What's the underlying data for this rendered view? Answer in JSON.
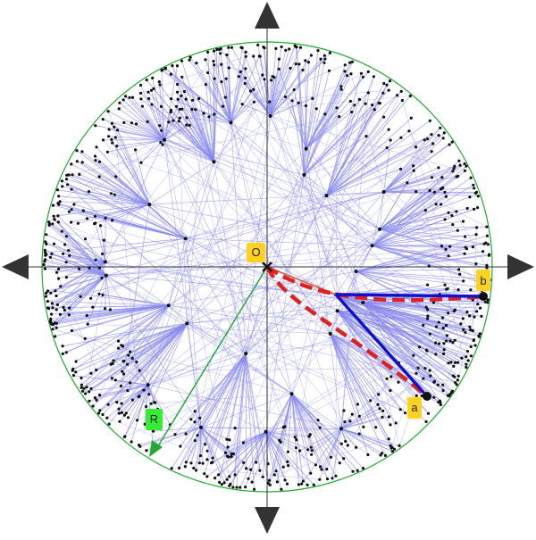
{
  "labels": {
    "origin": "O",
    "point_a": "a",
    "point_b": "b",
    "radius": "R"
  },
  "colors": {
    "background": "#ffffff",
    "boundary_circle": "#22aa33",
    "edge": "#8888ee",
    "node": "#111111",
    "geodesic": "#dd2222",
    "tree_path": "#1111cc",
    "radius_arrow": "#22aa33",
    "axis": "#333333",
    "label_yellow": "#ffd21f",
    "label_green": "#33ee33"
  }
}
